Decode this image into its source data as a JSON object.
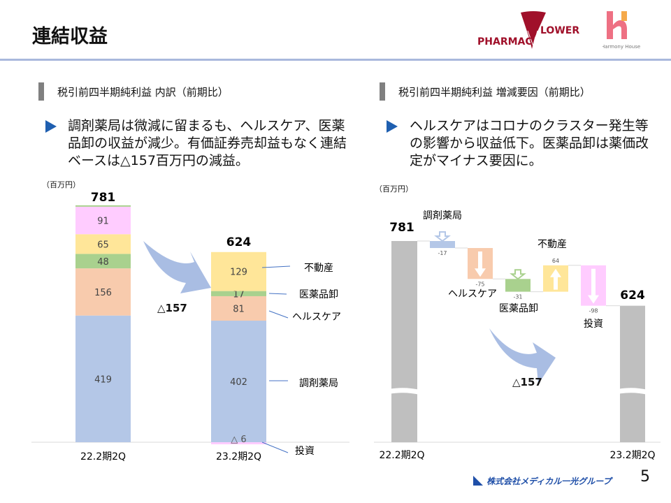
{
  "header": {
    "title": "連結収益",
    "logos": [
      "PHARMAC FLOWER",
      "Harmony House"
    ]
  },
  "left": {
    "section_title": "税引前四半期純利益 内訳（前期比）",
    "bullet": "調剤薬局は微減に留まるも、ヘルスケア、医薬品卸の収益が減少。有価証券売却益もなく連結ベースは△157百万円の減益。",
    "unit": "（百万円）",
    "delta_label": "△157"
  },
  "right": {
    "section_title": "税引前四半期純利益 増減要因（前期比）",
    "bullet": "ヘルスケアはコロナのクラスター発生等の影響から収益低下。医薬品卸は薬価改定がマイナス要因に。",
    "unit": "（百万円）",
    "delta_label": "△157"
  },
  "footer": {
    "company": "株式会社メディカル一光グループ",
    "page": "5"
  },
  "colors": {
    "調剤薬局": "#b4c7e7",
    "ヘルスケア": "#f8cbad",
    "医薬品卸": "#a9d18e",
    "不動産": "#ffe699",
    "投資": "#ffccff",
    "total": "#bfbfbf",
    "arrow": "#a9bde3"
  },
  "chart_data": [
    {
      "type": "bar",
      "stacked": true,
      "categories": [
        "22.2期2Q",
        "23.2期2Q"
      ],
      "totals": [
        "781",
        "624"
      ],
      "series": [
        {
          "name": "調剤薬局",
          "values": [
            419,
            402
          ],
          "labels": [
            "419",
            "402"
          ]
        },
        {
          "name": "ヘルスケア",
          "values": [
            156,
            81
          ],
          "labels": [
            "156",
            "81"
          ]
        },
        {
          "name": "医薬品卸",
          "values": [
            48,
            17
          ],
          "labels": [
            "48",
            "17"
          ]
        },
        {
          "name": "不動産",
          "values": [
            65,
            129
          ],
          "labels": [
            "65",
            "129"
          ]
        },
        {
          "name": "投資",
          "values": [
            91,
            -6
          ],
          "labels": [
            "91",
            "△ 6"
          ]
        }
      ],
      "annotation": "△157"
    },
    {
      "type": "waterfall",
      "start": {
        "label": "22.2期2Q",
        "value": 781,
        "text": "781"
      },
      "end": {
        "label": "23.2期2Q",
        "value": 624,
        "text": "624"
      },
      "steps": [
        {
          "name": "調剤薬局",
          "value": -17,
          "text": "-17"
        },
        {
          "name": "ヘルスケア",
          "value": -75,
          "text": "-75"
        },
        {
          "name": "医薬品卸",
          "value": -31,
          "text": "-31"
        },
        {
          "name": "不動産",
          "value": 64,
          "text": "64"
        },
        {
          "name": "投資",
          "value": -98,
          "text": "-98"
        }
      ],
      "axis_break": true,
      "annotation": "△157"
    }
  ]
}
